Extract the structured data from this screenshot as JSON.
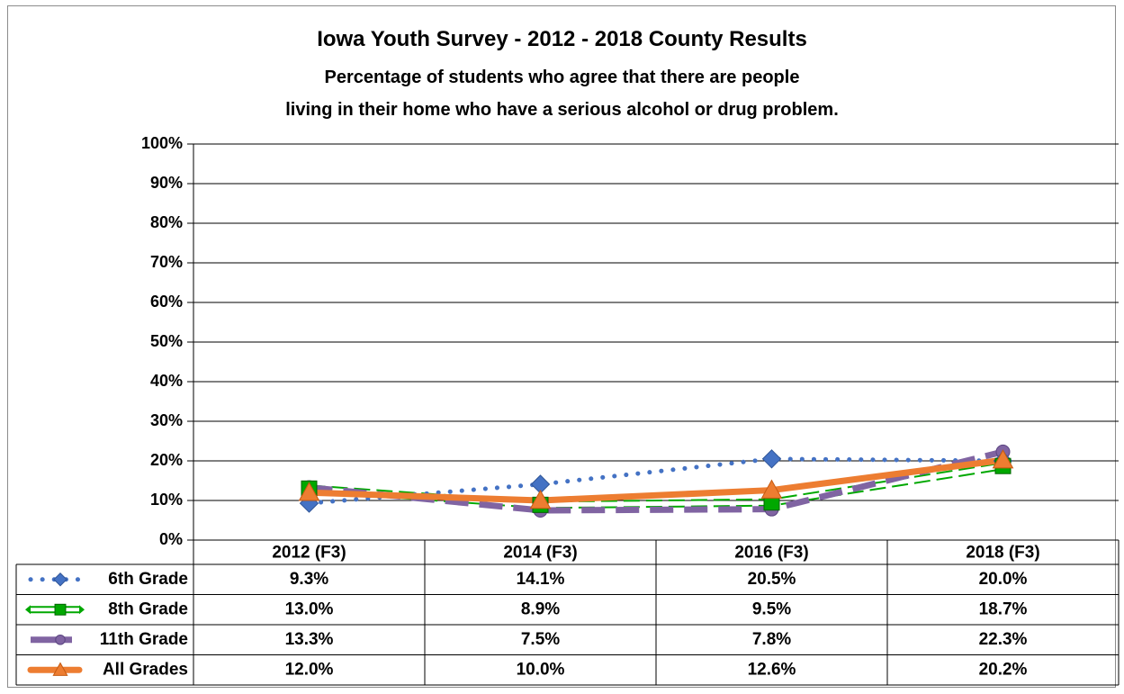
{
  "chart_data": {
    "type": "line",
    "title": "Iowa Youth Survey - 2012 - 2018 County Results",
    "subtitle_lines": [
      "Percentage of students who agree that there are people",
      "living in their home who have a serious alcohol or drug problem."
    ],
    "categories": [
      "2012 (F3)",
      "2014 (F3)",
      "2016 (F3)",
      "2018 (F3)"
    ],
    "ylim": [
      0,
      100
    ],
    "y_ticks": [
      "0%",
      "10%",
      "20%",
      "30%",
      "40%",
      "50%",
      "60%",
      "70%",
      "80%",
      "90%",
      "100%"
    ],
    "grid": true,
    "legend": "data-table",
    "series": [
      {
        "name": "6th Grade",
        "values": [
          9.3,
          14.1,
          20.5,
          20.0
        ],
        "labels": [
          "9.3%",
          "14.1%",
          "20.5%",
          "20.0%"
        ],
        "color": "#4472c4",
        "marker": "diamond",
        "line": "dotted"
      },
      {
        "name": "8th Grade",
        "values": [
          13.0,
          8.9,
          9.5,
          18.7
        ],
        "labels": [
          "13.0%",
          "8.9%",
          "9.5%",
          "18.7%"
        ],
        "color": "#00a800",
        "marker": "square",
        "line": "double-dashed"
      },
      {
        "name": "11th Grade",
        "values": [
          13.3,
          7.5,
          7.8,
          22.3
        ],
        "labels": [
          "13.3%",
          "7.5%",
          "7.8%",
          "22.3%"
        ],
        "color": "#8064a2",
        "marker": "circle",
        "line": "dashed"
      },
      {
        "name": "All Grades",
        "values": [
          12.0,
          10.0,
          12.6,
          20.2
        ],
        "labels": [
          "12.0%",
          "10.0%",
          "12.6%",
          "20.2%"
        ],
        "color": "#ed7d31",
        "marker": "triangle",
        "line": "solid"
      }
    ]
  }
}
